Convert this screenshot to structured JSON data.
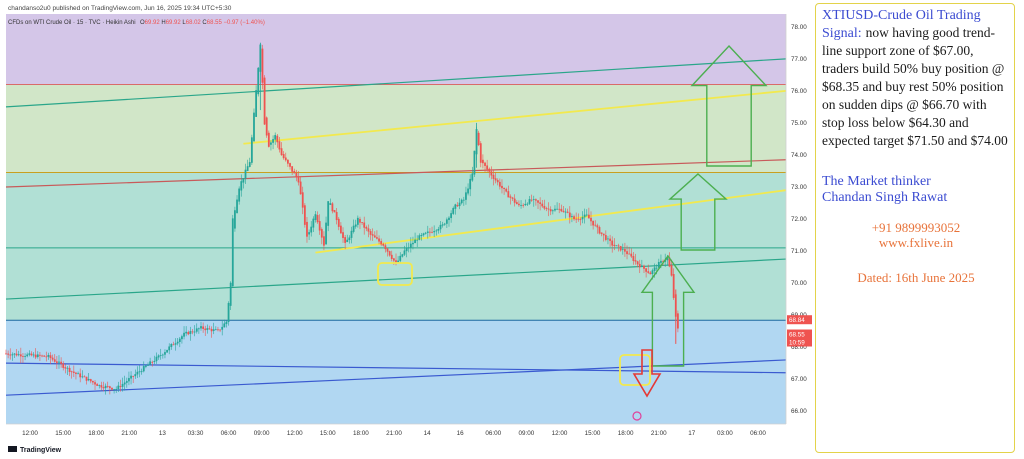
{
  "header": {
    "publisher": "chandanso2u0 published on TradingView.com, Jun 16, 2025 19:34 UTC+5:30",
    "symbol_line": "CFDs on WTI Crude Oil · 15 · TVC · Heikin Ashi",
    "ohlc": {
      "o": "69.92",
      "h": "69.92",
      "l": "68.02",
      "c": "68.55",
      "change": "−0.97 (−1.40%)"
    }
  },
  "footer": {
    "brand": "TradingView"
  },
  "price_labels": {
    "current": "68.84",
    "last": "68.55",
    "timer": "10:59"
  },
  "note": {
    "headline": "XTIUSD-Crude Oil Trading Signal:",
    "body": "now having good trend-line support zone of $67.00, traders build 50% buy position @ $68.35 and buy rest 50% position on sudden dips @ $66.70 with stop loss below $64.30 and expected target $71.50 and $74.00",
    "signature_1": "The Market thinker",
    "signature_2": "Chandan Singh Rawat",
    "phone": "+91 9899993052",
    "website": "www.fxlive.in",
    "dated": "Dated: 16th June 2025"
  },
  "colors": {
    "bull": "#26a69a",
    "bear": "#ef5350",
    "yellow_line": "#f2e94e",
    "green_arrow": "#4caf50",
    "red_arrow": "#e53935",
    "band_top": "#cfc0e6",
    "band_mid": "#cce3c2",
    "band_low": "#a8ddd0",
    "band_bottom": "#a9d3f1"
  },
  "chart_data": {
    "type": "candlestick",
    "title": "CFDs on WTI Crude Oil · 15 · TVC · Heikin Ashi",
    "xlabel": "",
    "ylabel": "",
    "ylim": [
      65.6,
      78.4
    ],
    "y_ticks": [
      "66.00",
      "67.00",
      "68.00",
      "69.00",
      "70.00",
      "71.00",
      "72.00",
      "73.00",
      "74.00",
      "75.00",
      "76.00",
      "77.00",
      "78.00"
    ],
    "x_ticks": [
      "12:00",
      "15:00",
      "18:00",
      "21:00",
      "13",
      "03:30",
      "06:00",
      "09:00",
      "12:00",
      "15:00",
      "18:00",
      "21:00",
      "14",
      "16",
      "06:00",
      "09:00",
      "12:00",
      "15:00",
      "18:00",
      "21:00",
      "17",
      "03:00",
      "06:00"
    ],
    "horizontal_levels": [
      {
        "value": 76.2,
        "color": "#d96a6a"
      },
      {
        "value": 73.45,
        "color": "#c8a020"
      },
      {
        "value": 71.1,
        "color": "#2aa68a"
      },
      {
        "value": 68.84,
        "color": "#1e6aa0"
      }
    ],
    "price_path": [
      [
        0,
        67.8
      ],
      [
        20,
        67.7
      ],
      [
        32,
        67.2
      ],
      [
        44,
        66.8
      ],
      [
        52,
        66.7
      ],
      [
        60,
        67.1
      ],
      [
        72,
        67.7
      ],
      [
        84,
        68.4
      ],
      [
        92,
        68.6
      ],
      [
        100,
        68.5
      ],
      [
        104,
        68.8
      ],
      [
        106,
        70.0
      ],
      [
        107,
        72.0
      ],
      [
        110,
        73.0
      ],
      [
        115,
        73.8
      ],
      [
        118,
        76.0
      ],
      [
        120,
        77.5
      ],
      [
        122,
        75.0
      ],
      [
        124,
        74.3
      ],
      [
        127,
        74.6
      ],
      [
        130,
        74.0
      ],
      [
        138,
        73.2
      ],
      [
        142,
        71.4
      ],
      [
        146,
        72.2
      ],
      [
        150,
        71.2
      ],
      [
        152,
        72.6
      ],
      [
        156,
        72.0
      ],
      [
        160,
        71.2
      ],
      [
        166,
        72.0
      ],
      [
        172,
        71.5
      ],
      [
        178,
        71.2
      ],
      [
        184,
        70.6
      ],
      [
        188,
        71.0
      ],
      [
        194,
        71.4
      ],
      [
        200,
        71.6
      ],
      [
        206,
        71.8
      ],
      [
        212,
        72.4
      ],
      [
        216,
        72.6
      ],
      [
        220,
        73.4
      ],
      [
        222,
        74.8
      ],
      [
        224,
        73.8
      ],
      [
        230,
        73.3
      ],
      [
        236,
        72.8
      ],
      [
        242,
        72.4
      ],
      [
        248,
        72.6
      ],
      [
        256,
        72.3
      ],
      [
        262,
        72.3
      ],
      [
        268,
        72.0
      ],
      [
        274,
        72.1
      ],
      [
        280,
        71.6
      ],
      [
        286,
        71.2
      ],
      [
        292,
        71.0
      ],
      [
        298,
        70.6
      ],
      [
        304,
        70.3
      ],
      [
        308,
        70.6
      ],
      [
        312,
        70.8
      ],
      [
        314,
        70.2
      ],
      [
        316,
        68.9
      ],
      [
        317,
        68.55
      ]
    ],
    "series": [
      {
        "name": "",
        "type": "trendline",
        "points": [
          [
            0,
            75.5
          ],
          [
            368,
            77.0
          ]
        ],
        "color": "#2aa68a"
      },
      {
        "name": "",
        "type": "trendline",
        "points": [
          [
            0,
            73.0
          ],
          [
            368,
            73.85
          ]
        ],
        "color": "#c85a5a"
      },
      {
        "name": "",
        "type": "trendline",
        "points": [
          [
            0,
            69.5
          ],
          [
            368,
            70.75
          ]
        ],
        "color": "#2aa68a"
      },
      {
        "name": "",
        "type": "trendline",
        "points": [
          [
            0,
            66.5
          ],
          [
            368,
            67.6
          ]
        ],
        "color": "#3a5ad0"
      },
      {
        "name": "",
        "type": "trendline",
        "points": [
          [
            0,
            67.5
          ],
          [
            368,
            67.2
          ]
        ],
        "color": "#3a5ad0"
      },
      {
        "name": "",
        "type": "trendline",
        "points": [
          [
            112,
            74.35
          ],
          [
            368,
            76.0
          ]
        ],
        "color": "#f2e94e"
      },
      {
        "name": "",
        "type": "trendline",
        "points": [
          [
            146,
            70.95
          ],
          [
            368,
            72.9
          ]
        ],
        "color": "#f2e94e"
      }
    ]
  }
}
